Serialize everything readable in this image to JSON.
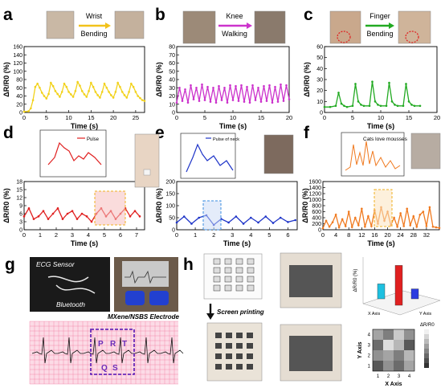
{
  "figure": {
    "panels": [
      {
        "id": "a",
        "letter": "a",
        "legend": {
          "from": "Wrist",
          "to": "Bending"
        },
        "xlabel": "Time (s)",
        "ylabel": "ΔR/R0 (%)",
        "color": "#f2d21b"
      },
      {
        "id": "b",
        "letter": "b",
        "legend": {
          "from": "Knee",
          "to": "Walking"
        },
        "xlabel": "Time (s)",
        "ylabel": "ΔR/R0 (%)",
        "color": "#cc33cc"
      },
      {
        "id": "c",
        "letter": "c",
        "legend": {
          "from": "Finger",
          "to": "Bending"
        },
        "xlabel": "Time (s)",
        "ylabel": "ΔR/R0 (%)",
        "color": "#22aa22"
      },
      {
        "id": "d",
        "letter": "d",
        "inset_legend": "Pulse",
        "xlabel": "Time (s)",
        "ylabel": "ΔR/R0 (%)",
        "color": "#e02020"
      },
      {
        "id": "e",
        "letter": "e",
        "inset_legend": "Pulse of neck",
        "xlabel": "Time (s)",
        "ylabel": "ΔR/R0 (%)",
        "color": "#1f35c8"
      },
      {
        "id": "f",
        "letter": "f",
        "inset_legend": "Cats love mousses",
        "xlabel": "Time (s)",
        "ylabel": "ΔR/R0 (%)",
        "color": "#f07a20"
      },
      {
        "id": "g",
        "letter": "g",
        "labels": {
          "sensor": "ECG Sensor",
          "bluetooth": "Bluetooth",
          "electrode": "MXene/NSBS Electrode",
          "p": "P",
          "r": "R",
          "t": "T",
          "q": "Q",
          "s": "S"
        }
      },
      {
        "id": "h",
        "letter": "h",
        "labels": {
          "printing": "Screen printing",
          "zlabel": "ΔR/R0 (%)",
          "heat_title": "ΔR/R0",
          "xaxis": "X Axis",
          "yaxis": "Y Axis",
          "xaxis3d": "X Axis",
          "yaxis3d": "Y Axis"
        }
      }
    ]
  },
  "chart_data": [
    {
      "type": "line",
      "panel": "a",
      "xlabel": "Time (s)",
      "ylabel": "ΔR/R0 (%)",
      "xlim": [
        0,
        27
      ],
      "ylim": [
        0,
        160
      ],
      "xticks": [
        0,
        5,
        10,
        15,
        20,
        25
      ],
      "yticks": [
        0,
        20,
        40,
        60,
        80,
        100,
        120,
        140,
        160
      ],
      "series": [
        {
          "x": [
            0,
            1,
            1.5,
            2,
            2.5,
            3,
            3.5,
            4,
            4.5,
            5,
            5.5,
            6,
            6.5,
            7,
            7.5,
            8,
            8.5,
            9,
            9.5,
            10,
            10.5,
            11,
            11.5,
            12,
            12.5,
            13,
            13.5,
            14,
            14.5,
            15,
            15.5,
            16,
            16.5,
            17,
            17.5,
            18,
            18.5,
            19,
            19.5,
            20,
            20.5,
            21,
            21.5,
            22,
            22.5,
            23,
            23.5,
            24,
            24.5,
            25,
            25.5,
            26,
            26.5,
            27
          ],
          "y": [
            2,
            3,
            10,
            30,
            62,
            70,
            60,
            48,
            40,
            34,
            45,
            72,
            64,
            52,
            45,
            38,
            50,
            70,
            62,
            50,
            44,
            38,
            52,
            74,
            65,
            52,
            44,
            38,
            52,
            72,
            62,
            50,
            42,
            36,
            50,
            70,
            60,
            50,
            42,
            36,
            50,
            72,
            62,
            50,
            42,
            36,
            50,
            70,
            62,
            50,
            40,
            35,
            30,
            28
          ]
        }
      ]
    },
    {
      "type": "line",
      "panel": "b",
      "xlabel": "Time (s)",
      "ylabel": "ΔR/R0 (%)",
      "xlim": [
        0,
        20
      ],
      "ylim": [
        0,
        80
      ],
      "xticks": [
        0,
        5,
        10,
        15,
        20
      ],
      "yticks": [
        0,
        10,
        20,
        30,
        40,
        50,
        60,
        70,
        80
      ],
      "series": [
        {
          "x": [
            0,
            0.5,
            1,
            1.5,
            2,
            2.5,
            3,
            3.5,
            4,
            4.5,
            5,
            5.5,
            6,
            6.5,
            7,
            7.5,
            8,
            8.5,
            9,
            9.5,
            10,
            10.5,
            11,
            11.5,
            12,
            12.5,
            13,
            13.5,
            14,
            14.5,
            15,
            15.5,
            16,
            16.5,
            17,
            17.5,
            18,
            18.5,
            19,
            19.5,
            20
          ],
          "y": [
            12,
            30,
            14,
            28,
            12,
            33,
            16,
            30,
            14,
            34,
            15,
            31,
            13,
            30,
            12,
            32,
            15,
            30,
            12,
            33,
            15,
            32,
            14,
            33,
            13,
            31,
            12,
            33,
            15,
            30,
            13,
            32,
            14,
            33,
            12,
            31,
            13,
            34,
            14,
            33,
            16
          ]
        }
      ]
    },
    {
      "type": "line",
      "panel": "c",
      "xlabel": "Time (s)",
      "ylabel": "ΔR/R0 (%)",
      "xlim": [
        0,
        20
      ],
      "ylim": [
        0,
        60
      ],
      "xticks": [
        0,
        5,
        10,
        15,
        20
      ],
      "yticks": [
        0,
        10,
        20,
        30,
        40,
        50,
        60
      ],
      "series": [
        {
          "x": [
            0,
            1,
            2,
            2.5,
            3,
            3.5,
            4,
            5,
            5.5,
            6,
            6.5,
            7,
            8,
            8.5,
            9,
            9.5,
            10,
            11,
            11.5,
            12,
            12.5,
            13,
            14,
            14.5,
            15,
            15.5,
            16,
            17
          ],
          "y": [
            5,
            5,
            6,
            18,
            8,
            6,
            5,
            6,
            26,
            10,
            7,
            6,
            6,
            28,
            10,
            7,
            6,
            6,
            27,
            10,
            7,
            6,
            6,
            26,
            10,
            7,
            6,
            6
          ]
        }
      ]
    },
    {
      "type": "line",
      "panel": "d",
      "xlabel": "Time (s)",
      "ylabel": "ΔR/R0 (%)",
      "xlim": [
        0,
        7.5
      ],
      "ylim": [
        0,
        18
      ],
      "xticks": [
        0,
        1,
        2,
        3,
        4,
        5,
        6,
        7
      ],
      "yticks": [
        0,
        3,
        6,
        9,
        12,
        15,
        18
      ],
      "series": [
        {
          "name": "Pulse",
          "x": [
            0,
            0.3,
            0.6,
            0.9,
            1.2,
            1.5,
            1.8,
            2.1,
            2.4,
            2.7,
            3,
            3.3,
            3.6,
            3.9,
            4.2,
            4.5,
            4.8,
            5.1,
            5.4,
            5.7,
            6,
            6.3,
            6.6,
            6.9,
            7.2
          ],
          "y": [
            5,
            8,
            4,
            5,
            7,
            4,
            6,
            8,
            4,
            6,
            7,
            4,
            6,
            5,
            3,
            6,
            8,
            5,
            7,
            4,
            6,
            8,
            5,
            7,
            5
          ]
        }
      ]
    },
    {
      "type": "line",
      "panel": "e",
      "xlabel": "Time (s)",
      "ylabel": "ΔR/R0 (%)",
      "xlim": [
        0,
        6.5
      ],
      "ylim": [
        0,
        200
      ],
      "xticks": [
        0,
        1,
        2,
        3,
        4,
        5,
        6
      ],
      "yticks": [
        0,
        50,
        100,
        150,
        200
      ],
      "series": [
        {
          "name": "Pulse of neck",
          "x": [
            0,
            0.4,
            0.8,
            1.2,
            1.6,
            2,
            2.4,
            2.8,
            3.2,
            3.6,
            4,
            4.4,
            4.8,
            5.2,
            5.6,
            6,
            6.4
          ],
          "y": [
            30,
            55,
            25,
            50,
            60,
            20,
            45,
            30,
            55,
            25,
            50,
            30,
            55,
            28,
            50,
            32,
            40
          ]
        }
      ]
    },
    {
      "type": "line",
      "panel": "f",
      "xlabel": "Time (s)",
      "ylabel": "ΔR/R0 (%)",
      "xlim": [
        0,
        36
      ],
      "ylim": [
        0,
        1600
      ],
      "xticks": [
        0,
        4,
        8,
        12,
        16,
        20,
        24,
        28,
        32
      ],
      "yticks": [
        0,
        200,
        400,
        600,
        800,
        1000,
        1200,
        1400,
        1600
      ],
      "series": [
        {
          "name": "Cats love mousses",
          "x": [
            0,
            1,
            2,
            3,
            4,
            5,
            6,
            7,
            8,
            9,
            10,
            11,
            12,
            13,
            14,
            15,
            16,
            17,
            18,
            19,
            20,
            21,
            22,
            23,
            24,
            25,
            26,
            27,
            28,
            29,
            30,
            31,
            32,
            33,
            34,
            35,
            36
          ],
          "y": [
            50,
            300,
            100,
            250,
            500,
            80,
            350,
            120,
            600,
            90,
            400,
            150,
            700,
            100,
            450,
            120,
            650,
            200,
            750,
            300,
            600,
            150,
            400,
            100,
            550,
            120,
            700,
            150,
            450,
            100,
            500,
            600,
            120,
            750,
            100,
            80,
            60
          ]
        }
      ]
    },
    {
      "type": "bar",
      "panel": "h-3d",
      "zlabel": "ΔR/R0 (%)",
      "categories": [
        "cyan",
        "red",
        "blue"
      ],
      "values": [
        30,
        80,
        20
      ]
    },
    {
      "type": "heatmap",
      "panel": "h-map",
      "title": "ΔR/R0",
      "xlabel": "X Axis",
      "ylabel": "Y Axis",
      "xticks": [
        1,
        2,
        3,
        4
      ],
      "yticks": [
        1,
        2,
        3,
        4
      ],
      "values": [
        [
          0.6,
          0.4,
          0.8,
          0.5
        ],
        [
          0.3,
          0.9,
          0.7,
          0.2
        ],
        [
          0.5,
          0.6,
          0.4,
          0.7
        ],
        [
          0.2,
          0.5,
          0.3,
          0.6
        ]
      ]
    }
  ]
}
